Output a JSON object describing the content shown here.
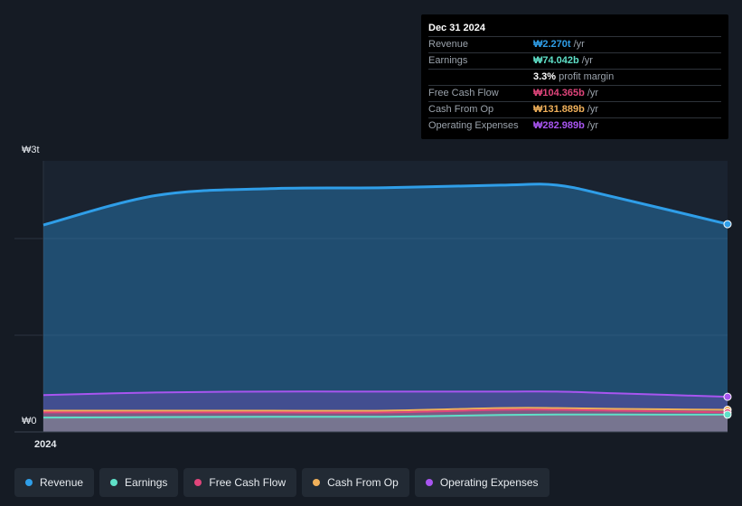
{
  "tooltip": {
    "date": "Dec 31 2024",
    "rows": [
      {
        "label": "Revenue",
        "value": "₩2.270t",
        "unit": "/yr",
        "color": "#2f9ee8"
      },
      {
        "label": "Earnings",
        "value": "₩74.042b",
        "unit": "/yr",
        "color": "#5fe0c8"
      },
      {
        "label": "",
        "value": "3.3%",
        "unit": "profit margin",
        "color": "#ffffff"
      },
      {
        "label": "Free Cash Flow",
        "value": "₩104.365b",
        "unit": "/yr",
        "color": "#e0457b"
      },
      {
        "label": "Cash From Op",
        "value": "₩131.889b",
        "unit": "/yr",
        "color": "#f0b05a"
      },
      {
        "label": "Operating Expenses",
        "value": "₩282.989b",
        "unit": "/yr",
        "color": "#a855f0"
      }
    ]
  },
  "legend": [
    {
      "label": "Revenue",
      "color": "#2f9ee8"
    },
    {
      "label": "Earnings",
      "color": "#5fe0c8"
    },
    {
      "label": "Free Cash Flow",
      "color": "#e0457b"
    },
    {
      "label": "Cash From Op",
      "color": "#f0b05a"
    },
    {
      "label": "Operating Expenses",
      "color": "#a855f0"
    }
  ],
  "chart_data": {
    "type": "area",
    "ytick_labels": [
      "₩3t",
      "₩0"
    ],
    "xtick_labels": [
      "2024"
    ],
    "ylim": [
      0,
      3.0
    ],
    "x": [
      "2024-01-01",
      "2024-03-01",
      "2024-05-01",
      "2024-07-01",
      "2024-09-01",
      "2024-10-01",
      "2024-11-01",
      "2024-12-31"
    ],
    "series": [
      {
        "name": "Revenue",
        "color": "#2f9ee8",
        "values": [
          2.26,
          2.6,
          2.68,
          2.69,
          2.72,
          2.72,
          2.58,
          2.27
        ]
      },
      {
        "name": "Operating Expenses",
        "color": "#a855f0",
        "values": [
          0.3,
          0.33,
          0.34,
          0.34,
          0.34,
          0.34,
          0.32,
          0.28
        ]
      },
      {
        "name": "Cash From Op",
        "color": "#f0b05a",
        "values": [
          0.12,
          0.12,
          0.12,
          0.12,
          0.15,
          0.15,
          0.14,
          0.13
        ]
      },
      {
        "name": "Free Cash Flow",
        "color": "#e0457b",
        "values": [
          0.1,
          0.1,
          0.1,
          0.1,
          0.13,
          0.13,
          0.12,
          0.1
        ]
      },
      {
        "name": "Earnings",
        "color": "#5fe0c8",
        "values": [
          0.04,
          0.045,
          0.05,
          0.05,
          0.07,
          0.075,
          0.075,
          0.074
        ]
      }
    ]
  }
}
